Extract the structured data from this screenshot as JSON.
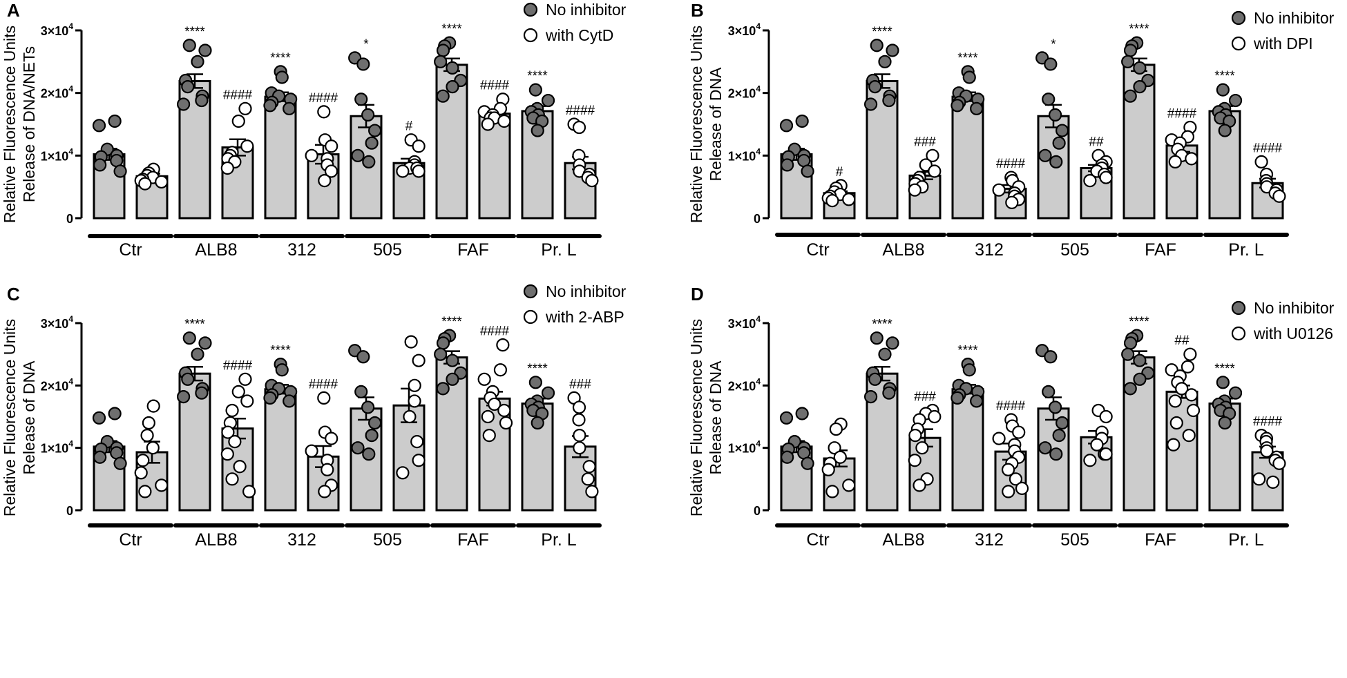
{
  "chart_data": [
    {
      "panel": "A",
      "type": "bar",
      "ylabel": [
        "Relative Fluorescence Units",
        "Release of DNA/NETs"
      ],
      "ylim": [
        0,
        30000
      ],
      "yticks": [
        {
          "value": 0,
          "base": "0",
          "exp": ""
        },
        {
          "value": 10000,
          "base": "1×10",
          "exp": "4"
        },
        {
          "value": 20000,
          "base": "2×10",
          "exp": "4"
        },
        {
          "value": 30000,
          "base": "3×10",
          "exp": "4"
        }
      ],
      "legend": [
        "No inhibitor",
        "with CytD"
      ],
      "categories": [
        "Ctr",
        "ALB8",
        "312",
        "505",
        "FAF",
        "Pr. L"
      ],
      "series": [
        {
          "name": "No inhibitor",
          "values": [
            10200,
            21900,
            19400,
            16300,
            24500,
            17100
          ],
          "sem": [
            900,
            1100,
            700,
            1800,
            1000,
            800
          ],
          "sig": [
            "",
            "****",
            "****",
            "*",
            "****",
            "****"
          ],
          "points": [
            [
              15500,
              14800,
              11000,
              10000,
              9800,
              9200,
              8500,
              7500
            ],
            [
              27600,
              26800,
              25000,
              22000,
              21000,
              19500,
              18800,
              18200
            ],
            [
              23400,
              22500,
              20000,
              19500,
              19000,
              18500,
              18000,
              17500
            ],
            [
              25600,
              24600,
              19000,
              16500,
              14000,
              12000,
              10000,
              9000
            ],
            [
              28000,
              27500,
              26800,
              25000,
              24000,
              22000,
              21000,
              19500
            ],
            [
              20500,
              18800,
              17500,
              17000,
              16500,
              16000,
              15500,
              14000
            ]
          ]
        },
        {
          "name": "with CytD",
          "values": [
            6700,
            11300,
            10200,
            8800,
            16700,
            8800
          ],
          "sem": [
            400,
            1300,
            1500,
            700,
            500,
            1000
          ],
          "sig": [
            "",
            "####",
            "####",
            "#",
            "####",
            "####"
          ],
          "points": [
            [
              7800,
              7200,
              6800,
              6500,
              6200,
              6000,
              5800,
              5500
            ],
            [
              17500,
              15500,
              11500,
              10500,
              10000,
              9500,
              9000,
              8000
            ],
            [
              17000,
              12500,
              11500,
              10000,
              9500,
              8500,
              7500,
              6000
            ],
            [
              12500,
              11500,
              9000,
              8500,
              8000,
              8000,
              7500,
              7500
            ],
            [
              19000,
              17500,
              17000,
              16500,
              16000,
              16000,
              15500,
              15000
            ],
            [
              15000,
              14500,
              10000,
              8500,
              7500,
              7000,
              6500,
              6000
            ]
          ]
        }
      ]
    },
    {
      "panel": "B",
      "type": "bar",
      "ylabel": [
        "Relative Fluorescence Units",
        "Release of DNA"
      ],
      "ylim": [
        0,
        30000
      ],
      "yticks": [
        {
          "value": 0,
          "base": "0",
          "exp": ""
        },
        {
          "value": 10000,
          "base": "1×10",
          "exp": "4"
        },
        {
          "value": 20000,
          "base": "2×10",
          "exp": "4"
        },
        {
          "value": 30000,
          "base": "3×10",
          "exp": "4"
        }
      ],
      "legend": [
        "No inhibitor",
        "with DPI"
      ],
      "categories": [
        "Ctr",
        "ALB8",
        "312",
        "505",
        "FAF",
        "Pr. L"
      ],
      "series": [
        {
          "name": "No inhibitor",
          "values": [
            10200,
            21900,
            19400,
            16300,
            24500,
            17100
          ],
          "sem": [
            900,
            1100,
            700,
            1800,
            1000,
            800
          ],
          "sig": [
            "",
            "****",
            "****",
            "*",
            "****",
            "****"
          ],
          "points": [
            [
              15500,
              14800,
              11000,
              10000,
              9800,
              9200,
              8500,
              7500
            ],
            [
              27600,
              26800,
              25000,
              22000,
              21000,
              19500,
              18800,
              18200
            ],
            [
              23400,
              22500,
              20000,
              19500,
              19000,
              18500,
              18000,
              17500
            ],
            [
              25600,
              24600,
              19000,
              16500,
              14000,
              12000,
              10000,
              9000
            ],
            [
              28000,
              27500,
              26800,
              25000,
              24000,
              22000,
              21000,
              19500
            ],
            [
              20500,
              18800,
              17500,
              17000,
              16500,
              16000,
              15500,
              14000
            ]
          ]
        },
        {
          "name": "with DPI",
          "values": [
            4000,
            6800,
            4700,
            8000,
            11600,
            5600
          ],
          "sem": [
            300,
            600,
            600,
            500,
            1000,
            700
          ],
          "sig": [
            "#",
            "###",
            "####",
            "##",
            "####",
            "####"
          ],
          "points": [
            [
              5200,
              4800,
              4200,
              3800,
              3500,
              3200,
              3000,
              2800
            ],
            [
              10000,
              8500,
              7500,
              6500,
              6000,
              5500,
              5000,
              4500
            ],
            [
              6500,
              6000,
              5000,
              4500,
              4000,
              3500,
              3000,
              2500
            ],
            [
              10000,
              9000,
              8500,
              8000,
              7500,
              7000,
              6500,
              6000
            ],
            [
              14500,
              13000,
              12500,
              12000,
              11000,
              10000,
              9500,
              9000
            ],
            [
              9000,
              7000,
              6000,
              5500,
              5000,
              4500,
              4000,
              3500
            ]
          ]
        }
      ]
    },
    {
      "panel": "C",
      "type": "bar",
      "ylabel": [
        "Relative Fluorescence Units",
        "Release of DNA"
      ],
      "ylim": [
        0,
        30000
      ],
      "yticks": [
        {
          "value": 0,
          "base": "0",
          "exp": ""
        },
        {
          "value": 10000,
          "base": "1×10",
          "exp": "4"
        },
        {
          "value": 20000,
          "base": "2×10",
          "exp": "4"
        },
        {
          "value": 30000,
          "base": "3×10",
          "exp": "4"
        }
      ],
      "legend": [
        "No inhibitor",
        "with 2-ABP"
      ],
      "categories": [
        "Ctr",
        "ALB8",
        "312",
        "505",
        "FAF",
        "Pr. L"
      ],
      "series": [
        {
          "name": "No inhibitor",
          "values": [
            10200,
            21900,
            19400,
            16300,
            24500,
            17100
          ],
          "sem": [
            900,
            1100,
            700,
            1800,
            1000,
            800
          ],
          "sig": [
            "",
            "****",
            "****",
            "",
            "****",
            "****"
          ],
          "points": [
            [
              15500,
              14800,
              11000,
              10000,
              9800,
              9200,
              8500,
              7500
            ],
            [
              27600,
              26800,
              25000,
              22000,
              21000,
              19500,
              18800,
              18200
            ],
            [
              23400,
              22500,
              20000,
              19500,
              19000,
              18500,
              18000,
              17500
            ],
            [
              25600,
              24600,
              19000,
              16500,
              14000,
              12000,
              10000,
              9000
            ],
            [
              28000,
              27500,
              26800,
              25000,
              24000,
              22000,
              21000,
              19500
            ],
            [
              20500,
              18800,
              17500,
              17000,
              16500,
              16000,
              15500,
              14000
            ]
          ]
        },
        {
          "name": "with 2-ABP",
          "values": [
            9300,
            13100,
            8600,
            16800,
            17900,
            10200
          ],
          "sem": [
            1700,
            1600,
            1700,
            2700,
            1100,
            1700
          ],
          "sig": [
            "",
            "####",
            "####",
            "",
            "####",
            "###"
          ],
          "points": [
            [
              16700,
              14000,
              12000,
              10000,
              8000,
              6000,
              4000,
              3000
            ],
            [
              21000,
              19000,
              17500,
              16000,
              14000,
              12500,
              11000,
              9000,
              7000,
              5000,
              3000
            ],
            [
              18000,
              12500,
              11500,
              9500,
              8000,
              6500,
              4000,
              3000
            ],
            [
              27000,
              24000,
              20000,
              17500,
              15000,
              11000,
              8000,
              6000
            ],
            [
              26500,
              22500,
              21000,
              19000,
              18000,
              17000,
              16000,
              15000,
              14000,
              12000
            ],
            [
              18000,
              16500,
              14500,
              12000,
              10000,
              7000,
              5000,
              3000
            ]
          ]
        }
      ]
    },
    {
      "panel": "D",
      "type": "bar",
      "ylabel": [
        "Relative Fluorescence Units",
        "Release of DNA"
      ],
      "ylim": [
        0,
        30000
      ],
      "yticks": [
        {
          "value": 0,
          "base": "0",
          "exp": ""
        },
        {
          "value": 10000,
          "base": "1×10",
          "exp": "4"
        },
        {
          "value": 20000,
          "base": "2×10",
          "exp": "4"
        },
        {
          "value": 30000,
          "base": "3×10",
          "exp": "4"
        }
      ],
      "legend": [
        "No inhibitor",
        "with U0126"
      ],
      "categories": [
        "Ctr",
        "ALB8",
        "312",
        "505",
        "FAF",
        "Pr. L"
      ],
      "series": [
        {
          "name": "No inhibitor",
          "values": [
            10200,
            21900,
            19400,
            16300,
            24500,
            17100
          ],
          "sem": [
            900,
            1100,
            700,
            1800,
            1000,
            800
          ],
          "sig": [
            "",
            "****",
            "****",
            "",
            "****",
            "****"
          ],
          "points": [
            [
              15500,
              14800,
              11000,
              10000,
              9800,
              9200,
              8500,
              7500
            ],
            [
              27600,
              26800,
              25000,
              22000,
              21000,
              19500,
              18800,
              18200
            ],
            [
              23400,
              22500,
              20000,
              19500,
              19000,
              18500,
              18000,
              17500
            ],
            [
              25600,
              24600,
              19000,
              16500,
              14000,
              12000,
              10000,
              9000
            ],
            [
              28000,
              27500,
              26800,
              25000,
              24000,
              22000,
              21000,
              19500
            ],
            [
              20500,
              18800,
              17500,
              17000,
              16500,
              16000,
              15500,
              14000
            ]
          ]
        },
        {
          "name": "with U0126",
          "values": [
            8300,
            11600,
            9400,
            11700,
            19000,
            9300
          ],
          "sem": [
            1300,
            1400,
            1300,
            1000,
            1000,
            900
          ],
          "sig": [
            "",
            "###",
            "####",
            "",
            "##",
            "####"
          ],
          "points": [
            [
              13800,
              13000,
              10000,
              8500,
              7500,
              6500,
              4000,
              3000
            ],
            [
              16000,
              15500,
              15000,
              14500,
              13000,
              12000,
              10000,
              8000,
              5000,
              4000
            ],
            [
              14500,
              13500,
              12500,
              11500,
              10500,
              9500,
              8500,
              7500,
              6500,
              5000,
              3500,
              3000
            ],
            [
              16000,
              15000,
              12500,
              11500,
              10500,
              9000,
              9000,
              8000
            ],
            [
              25000,
              23000,
              22500,
              21500,
              20500,
              19500,
              18500,
              17500,
              16000,
              14000,
              12000,
              10500
            ],
            [
              12000,
              11500,
              11000,
              10000,
              9500,
              8500,
              8000,
              7500,
              5000,
              4500
            ]
          ]
        }
      ]
    }
  ]
}
